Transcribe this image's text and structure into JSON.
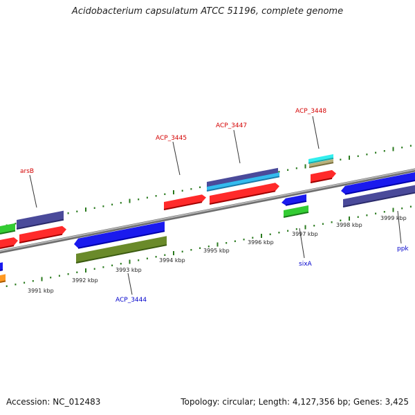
{
  "title": "Acidobacterium capsulatum ATCC 51196, complete genome",
  "accession": "Accession: NC_012483",
  "summary": "Topology: circular; Length: 4,127,356 bp; Genes: 3,425",
  "colors": {
    "backbone": "#8a8a8a",
    "tick": "#2a7a1e",
    "forward_label": "#d40000",
    "reverse_label": "#0000cc"
  },
  "scale": {
    "unit": "kbp",
    "ticks": [
      "3991 kbp",
      "3992 kbp",
      "3993 kbp",
      "3994 kbp",
      "3995 kbp",
      "3996 kbp",
      "3997 kbp",
      "3998 kbp",
      "3999 kbp"
    ]
  },
  "gene_labels": [
    {
      "id": "arsB",
      "text": "arsB",
      "strand": "forward"
    },
    {
      "id": "ACP_3445",
      "text": "ACP_3445",
      "strand": "forward"
    },
    {
      "id": "ACP_3447",
      "text": "ACP_3447",
      "strand": "forward"
    },
    {
      "id": "ACP_3448",
      "text": "ACP_3448",
      "strand": "forward"
    },
    {
      "id": "ACP_3444",
      "text": "ACP_3444",
      "strand": "reverse"
    },
    {
      "id": "sixA",
      "text": "sixA",
      "strand": "reverse"
    },
    {
      "id": "ppk",
      "text": "ppk",
      "strand": "reverse"
    }
  ]
}
